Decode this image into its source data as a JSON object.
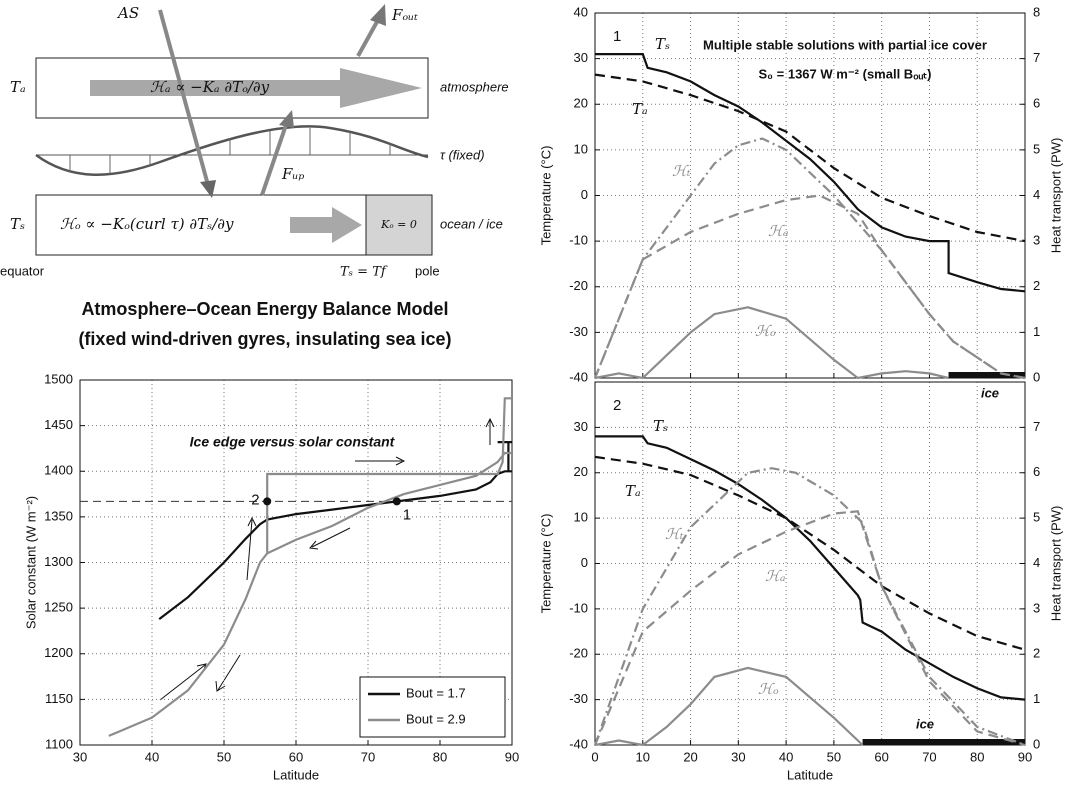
{
  "diagram": {
    "incoming": "AS",
    "outgoing": "Fₒᵤₜ",
    "upward": "Fᵤₚ",
    "atm_temp": "Tₐ",
    "atm_flux": "ℋₐ ∝ −Kₐ ∂Tₒ/∂y",
    "atm_name": "atmosphere",
    "wind": "τ (fixed)",
    "ocean_temp": "Tₛ",
    "ocean_flux": "ℋₒ ∝ −Kₒ(curl τ) ∂Tₛ/∂y",
    "ice_k": "Kₒ = 0",
    "ocean_name": "ocean / ice",
    "equator": "equator",
    "freeze": "Tₛ = Tf",
    "pole": "pole",
    "title": "Atmosphere–Ocean Energy Balance Model",
    "subtitle": "(fixed wind-driven gyres, insulating sea ice)"
  },
  "chart_data": [
    {
      "type": "line",
      "annotation": "Ice edge versus solar constant",
      "xlabel": "Latitude",
      "ylabel": "Solar constant (W m⁻²)",
      "xlim": [
        30,
        90
      ],
      "xticks": [
        30,
        40,
        50,
        60,
        70,
        80,
        90
      ],
      "ylim": [
        1100,
        1500
      ],
      "yticks": [
        1100,
        1150,
        1200,
        1250,
        1300,
        1350,
        1400,
        1450,
        1500
      ],
      "grid": true,
      "legend": "lower right",
      "reference_line": 1367,
      "points": [
        {
          "label": "1",
          "x": 74,
          "y": 1367
        },
        {
          "label": "2",
          "x": 56,
          "y": 1367
        }
      ],
      "series": [
        {
          "name": "Bout = 1.7",
          "color": "#111111",
          "style": "solid",
          "x": [
            41,
            45,
            50,
            53,
            55,
            56,
            60,
            65,
            70,
            74,
            80,
            85,
            87,
            88,
            89,
            90,
            null,
            88,
            90,
            null,
            89.5,
            89.5
          ],
          "values": [
            1238,
            1262,
            1300,
            1326,
            1342,
            1347,
            1353,
            1358,
            1363,
            1367,
            1373,
            1380,
            1388,
            1397,
            1400,
            1400,
            null,
            1432,
            1432,
            null,
            1400,
            1432
          ]
        },
        {
          "name": "Bout = 2.9",
          "color": "#8c8c8c",
          "style": "solid",
          "x": [
            34,
            40,
            45,
            50,
            53,
            55,
            56,
            56,
            70,
            88,
            88.7,
            89,
            90,
            null,
            56,
            60,
            65,
            70,
            75,
            80,
            85,
            88,
            89,
            90
          ],
          "values": [
            1110,
            1130,
            1160,
            1210,
            1260,
            1300,
            1310,
            1397,
            1397,
            1397,
            1410,
            1480,
            1480,
            null,
            1310,
            1325,
            1340,
            1360,
            1375,
            1385,
            1395,
            1410,
            1420,
            1420
          ]
        }
      ]
    },
    {
      "type": "line",
      "panel_label": "1",
      "title": "Multiple stable solutions with partial ice cover",
      "subtitle": "S₀ = 1367 W m⁻² (small Bₒᵤₜ)",
      "ylabel": "Temperature (°C)",
      "y2label": "Heat transport (PW)",
      "xlim": [
        0,
        90
      ],
      "xticks": [
        0,
        10,
        20,
        30,
        40,
        50,
        60,
        70,
        80,
        90
      ],
      "xtick_labels": false,
      "ylim": [
        -40,
        40
      ],
      "yticks": [
        -40,
        -30,
        -20,
        -10,
        0,
        10,
        20,
        30,
        40
      ],
      "y2lim": [
        0,
        8
      ],
      "y2ticks": [
        0,
        1,
        2,
        3,
        4,
        5,
        6,
        7,
        8
      ],
      "grid": true,
      "ice": {
        "label": "ice",
        "xlim": [
          74,
          90
        ]
      },
      "series": [
        {
          "label": "Tₛ",
          "color": "#111111",
          "style": "solid",
          "x": [
            0,
            5,
            10,
            11,
            15,
            20,
            25,
            30,
            35,
            40,
            45,
            50,
            55,
            60,
            65,
            70,
            74,
            74,
            80,
            85,
            90
          ],
          "values": [
            31,
            31,
            31,
            28,
            27,
            25,
            22,
            19.5,
            16,
            12,
            8,
            3,
            -3,
            -7,
            -9,
            -10,
            -10,
            -17,
            -19,
            -20.5,
            -21
          ]
        },
        {
          "label": "Tₐ",
          "color": "#111111",
          "style": "dashed",
          "x": [
            0,
            10,
            20,
            30,
            40,
            50,
            60,
            70,
            80,
            90
          ],
          "values": [
            26.5,
            25,
            22,
            18.5,
            14,
            6,
            -0.5,
            -4.5,
            -8,
            -10
          ]
        },
        {
          "label": "ℋₜ",
          "color": "#8c8c8c",
          "style": "dashdot",
          "axis": "y2",
          "x": [
            0,
            10,
            20,
            25,
            30,
            35,
            40,
            50,
            60,
            70,
            75,
            85,
            90
          ],
          "values": [
            0,
            2.6,
            4,
            4.7,
            5.1,
            5.25,
            5,
            4,
            2.8,
            1.4,
            0.8,
            0.1,
            0
          ]
        },
        {
          "label": "ℋₐ",
          "color": "#8c8c8c",
          "style": "dashed",
          "axis": "y2",
          "x": [
            0,
            10,
            20,
            30,
            40,
            47,
            55,
            60,
            70,
            75,
            85,
            90
          ],
          "values": [
            0,
            2.6,
            3.2,
            3.6,
            3.9,
            4,
            3.6,
            2.8,
            1.4,
            0.8,
            0.1,
            0
          ]
        },
        {
          "label": "ℋₒ",
          "color": "#8c8c8c",
          "style": "solid",
          "axis": "y2",
          "x": [
            0,
            5,
            10,
            15,
            20,
            25,
            32,
            40,
            50,
            55,
            60,
            65,
            70,
            74
          ],
          "values": [
            0,
            0.1,
            0,
            0.5,
            1,
            1.4,
            1.55,
            1.3,
            0.4,
            0,
            0.1,
            0.15,
            0.1,
            0
          ]
        }
      ]
    },
    {
      "type": "line",
      "panel_label": "2",
      "xlabel": "Latitude",
      "ylabel": "Temperature (°C)",
      "y2label": "Heat transport (PW)",
      "xlim": [
        0,
        90
      ],
      "xticks": [
        0,
        10,
        20,
        30,
        40,
        50,
        60,
        70,
        80,
        90
      ],
      "ylim": [
        -40,
        40
      ],
      "yticks": [
        -40,
        -30,
        -20,
        -10,
        0,
        10,
        20,
        30
      ],
      "y2lim": [
        0,
        8
      ],
      "y2ticks": [
        0,
        1,
        2,
        3,
        4,
        5,
        6,
        7
      ],
      "grid": true,
      "ice": {
        "label": "ice",
        "xlim": [
          56,
          90
        ]
      },
      "series": [
        {
          "label": "Tₛ",
          "color": "#111111",
          "style": "solid",
          "x": [
            0,
            10,
            11,
            15,
            20,
            25,
            30,
            35,
            40,
            45,
            50,
            55,
            55.5,
            56,
            60,
            65,
            70,
            75,
            80,
            85,
            90
          ],
          "values": [
            28,
            28,
            26.5,
            25.5,
            23,
            20.5,
            17.5,
            14,
            10,
            5,
            -1,
            -7,
            -8,
            -13,
            -15,
            -19,
            -22,
            -25,
            -27.5,
            -29.5,
            -30
          ]
        },
        {
          "label": "Tₐ",
          "color": "#111111",
          "style": "dashed",
          "x": [
            0,
            10,
            20,
            30,
            40,
            50,
            60,
            70,
            80,
            90
          ],
          "values": [
            23.5,
            22,
            19.5,
            15,
            10,
            3,
            -5,
            -11,
            -16,
            -19
          ]
        },
        {
          "label": "ℋₜ",
          "color": "#8c8c8c",
          "style": "dashdot",
          "axis": "y2",
          "x": [
            0,
            10,
            20,
            28,
            32,
            37,
            42,
            50,
            54,
            56,
            60,
            70,
            80,
            90
          ],
          "values": [
            0,
            3,
            4.8,
            5.6,
            6,
            6.1,
            6,
            5.5,
            5.1,
            4.9,
            3.5,
            1.5,
            0.4,
            0
          ]
        },
        {
          "label": "ℋₐ",
          "color": "#8c8c8c",
          "style": "dashed",
          "axis": "y2",
          "x": [
            0,
            10,
            20,
            30,
            40,
            50,
            55,
            60,
            70,
            80,
            90
          ],
          "values": [
            0,
            2.5,
            3.4,
            4.2,
            4.7,
            5.1,
            5.15,
            3.5,
            1.4,
            0.3,
            0
          ]
        },
        {
          "label": "ℋₒ",
          "color": "#8c8c8c",
          "style": "solid",
          "axis": "y2",
          "x": [
            0,
            5,
            10,
            15,
            20,
            25,
            32,
            40,
            50,
            56
          ],
          "values": [
            0,
            0.1,
            0,
            0.4,
            0.9,
            1.5,
            1.7,
            1.5,
            0.6,
            0
          ]
        }
      ]
    }
  ]
}
